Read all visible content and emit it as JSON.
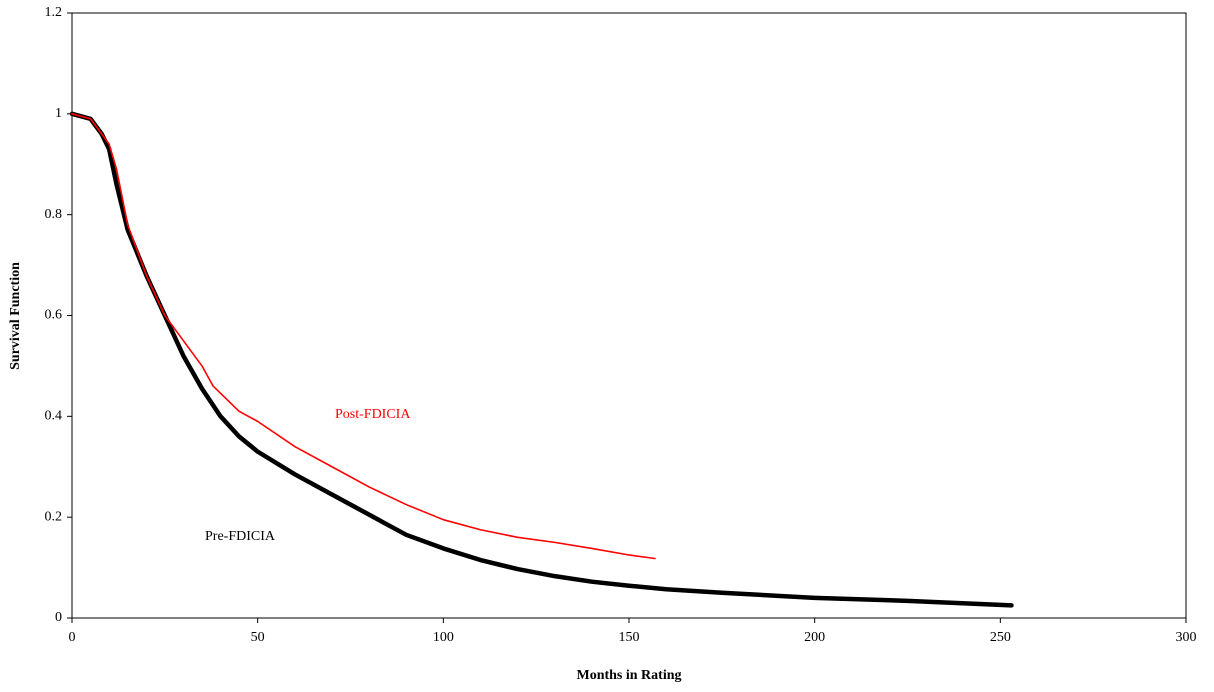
{
  "chart_data": {
    "type": "line",
    "xlabel": "Months in Rating",
    "ylabel": "Survival Function",
    "xlim": [
      0,
      300
    ],
    "xticks": [
      0,
      50,
      100,
      150,
      200,
      250,
      300
    ],
    "ylim": [
      0,
      1.2
    ],
    "yticks": [
      0,
      0.2,
      0.4,
      0.6,
      0.8,
      1,
      1.2
    ],
    "grid": false,
    "series": [
      {
        "name": "Pre-FDICIA",
        "color": "#000000",
        "x": [
          0,
          5,
          8,
          10,
          12,
          15,
          20,
          25,
          30,
          35,
          40,
          45,
          50,
          60,
          70,
          80,
          90,
          100,
          110,
          120,
          130,
          140,
          150,
          160,
          175,
          200,
          225,
          253
        ],
        "values": [
          1.0,
          0.99,
          0.96,
          0.93,
          0.86,
          0.77,
          0.68,
          0.6,
          0.52,
          0.455,
          0.4,
          0.36,
          0.33,
          0.285,
          0.245,
          0.205,
          0.165,
          0.138,
          0.115,
          0.097,
          0.083,
          0.072,
          0.064,
          0.057,
          0.05,
          0.04,
          0.034,
          0.025
        ]
      },
      {
        "name": "Post-FDICIA",
        "color": "#ff0000",
        "x": [
          0,
          5,
          8,
          10,
          12,
          15,
          20,
          25,
          30,
          35,
          38,
          45,
          50,
          60,
          70,
          80,
          90,
          100,
          110,
          120,
          130,
          140,
          150,
          157
        ],
        "values": [
          1.0,
          0.99,
          0.96,
          0.94,
          0.89,
          0.78,
          0.68,
          0.6,
          0.55,
          0.5,
          0.46,
          0.41,
          0.39,
          0.34,
          0.3,
          0.26,
          0.225,
          0.195,
          0.175,
          0.16,
          0.15,
          0.138,
          0.125,
          0.118
        ]
      }
    ]
  }
}
